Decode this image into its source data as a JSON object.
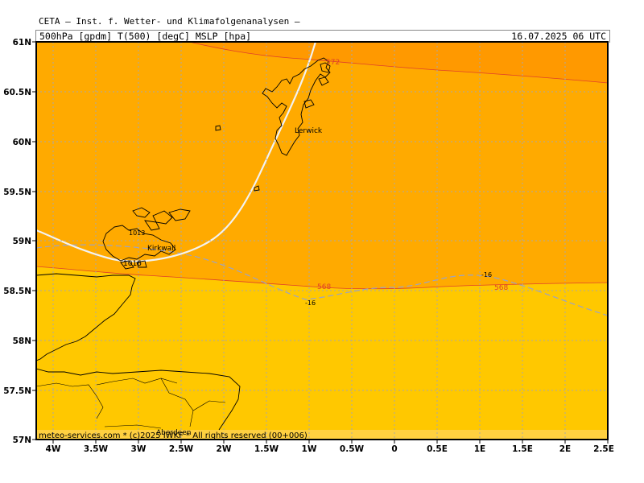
{
  "header": {
    "source": "CETA — Inst. f. Wetter- und Klimafolgenanalysen —",
    "fields": "500hPa [gpdm] T(500) [degC] MSLP [hpa]",
    "datetime": "16.07.2025 06 UTC"
  },
  "footer": {
    "credit": "meteo-services.com * (c)2025 IWKF * All rights reserved (00+006)"
  },
  "axes": {
    "lat_labels": [
      "61N",
      "60.5N",
      "60N",
      "59.5N",
      "59N",
      "58.5N",
      "58N",
      "57.5N",
      "57N"
    ],
    "lon_labels": [
      "4W",
      "3.5W",
      "3W",
      "2.5W",
      "2W",
      "1.5W",
      "1W",
      "0.5W",
      "0",
      "0.5E",
      "1E",
      "1.5E",
      "2E",
      "2.5E"
    ],
    "grid": true
  },
  "places": [
    {
      "name": "Lerwick"
    },
    {
      "name": "Kirkwall"
    },
    {
      "name": "Aberdeen"
    }
  ],
  "contours": {
    "geopotential": [
      {
        "label": "568"
      },
      {
        "label": "568"
      },
      {
        "label": "572"
      }
    ],
    "temperature": [
      {
        "label": "-16"
      },
      {
        "label": "-16"
      }
    ],
    "pressure": [
      {
        "label": "1016"
      },
      {
        "label": "1013"
      }
    ]
  },
  "colors": {
    "band_low": "#ffc800",
    "band_mid": "#ffaa00",
    "band_high": "#ff9900",
    "geopotential_line": "#e0402a",
    "temperature_line": "#9aa3c8",
    "pressure_line": "#f2f2f2"
  }
}
